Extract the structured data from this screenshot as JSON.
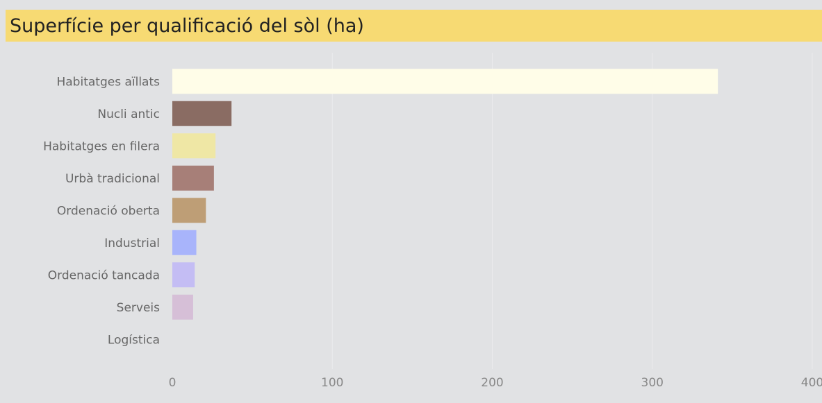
{
  "title": "Superfície per qualificació del sòl (ha)",
  "chart_data": {
    "type": "bar",
    "orientation": "horizontal",
    "title": "Superfície per qualificació del sòl (ha)",
    "xlabel": "",
    "ylabel": "",
    "categories": [
      "Habitatges aïllats",
      "Nucli antic",
      "Habitatges en filera",
      "Urbà tradicional",
      "Ordenació oberta",
      "Industrial",
      "Ordenació tancada",
      "Serveis",
      "Logística"
    ],
    "values": [
      341,
      37,
      27,
      26,
      21,
      15,
      14,
      13,
      0
    ],
    "colors": [
      "#fffde8",
      "#8a6c63",
      "#efe7a5",
      "#a77f78",
      "#be9e76",
      "#a8b4fb",
      "#c4bdf4",
      "#d6bfd7",
      "#e1e2e4"
    ],
    "xlim": [
      0,
      400
    ],
    "xticks": [
      0,
      100,
      200,
      300,
      400
    ],
    "grid": true
  }
}
